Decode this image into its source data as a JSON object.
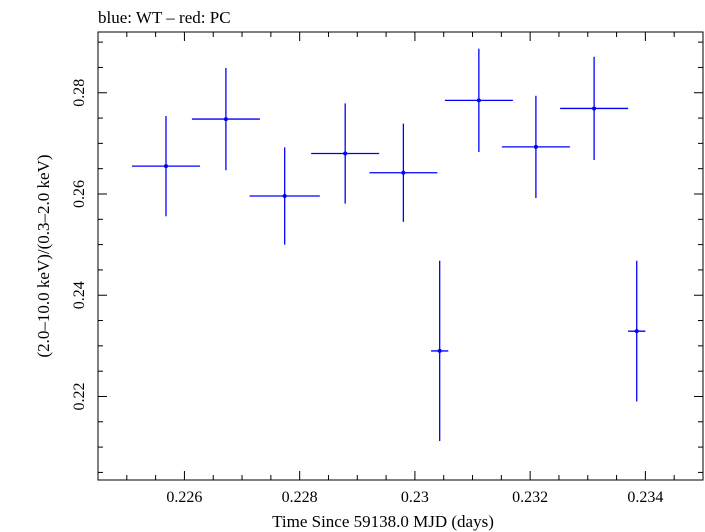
{
  "chart_data": {
    "type": "scatter",
    "title": "blue: WT – red: PC",
    "xlabel": "Time Since 59138.0 MJD (days)",
    "ylabel": "(2.0–10.0 keV)/(0.3–2.0 keV)",
    "xlim": [
      0.2245,
      0.235
    ],
    "ylim": [
      0.2035,
      0.292
    ],
    "x_ticks": [
      0.226,
      0.228,
      0.23,
      0.232,
      0.234
    ],
    "x_tick_labels": [
      "0.226",
      "0.228",
      "0.23",
      "0.232",
      "0.234"
    ],
    "y_ticks": [
      0.22,
      0.24,
      0.26,
      0.28
    ],
    "y_tick_labels": [
      "0.22",
      "0.24",
      "0.26",
      "0.28"
    ],
    "grid": false,
    "series": [
      {
        "color": "#0000ff",
        "points": [
          {
            "x": 0.22568,
            "xerr": 0.00059,
            "y": 0.2655,
            "yerr": 0.0099
          },
          {
            "x": 0.22672,
            "xerr": 0.00059,
            "y": 0.2748,
            "yerr": 0.0101
          },
          {
            "x": 0.22774,
            "xerr": 0.00061,
            "y": 0.2596,
            "yerr": 0.0096
          },
          {
            "x": 0.22879,
            "xerr": 0.00059,
            "y": 0.268,
            "yerr": 0.0099
          },
          {
            "x": 0.2298,
            "xerr": 0.00059,
            "y": 0.2642,
            "yerr": 0.0097
          },
          {
            "x": 0.23043,
            "xerr": 0.00015,
            "y": 0.229,
            "yerr": 0.0178
          },
          {
            "x": 0.23111,
            "xerr": 0.00059,
            "y": 0.2785,
            "yerr": 0.0102
          },
          {
            "x": 0.2321,
            "xerr": 0.00059,
            "y": 0.2693,
            "yerr": 0.0101
          },
          {
            "x": 0.23311,
            "xerr": 0.00059,
            "y": 0.2769,
            "yerr": 0.0102
          },
          {
            "x": 0.23385,
            "xerr": 0.00015,
            "y": 0.2329,
            "yerr": 0.0139
          }
        ]
      }
    ]
  }
}
